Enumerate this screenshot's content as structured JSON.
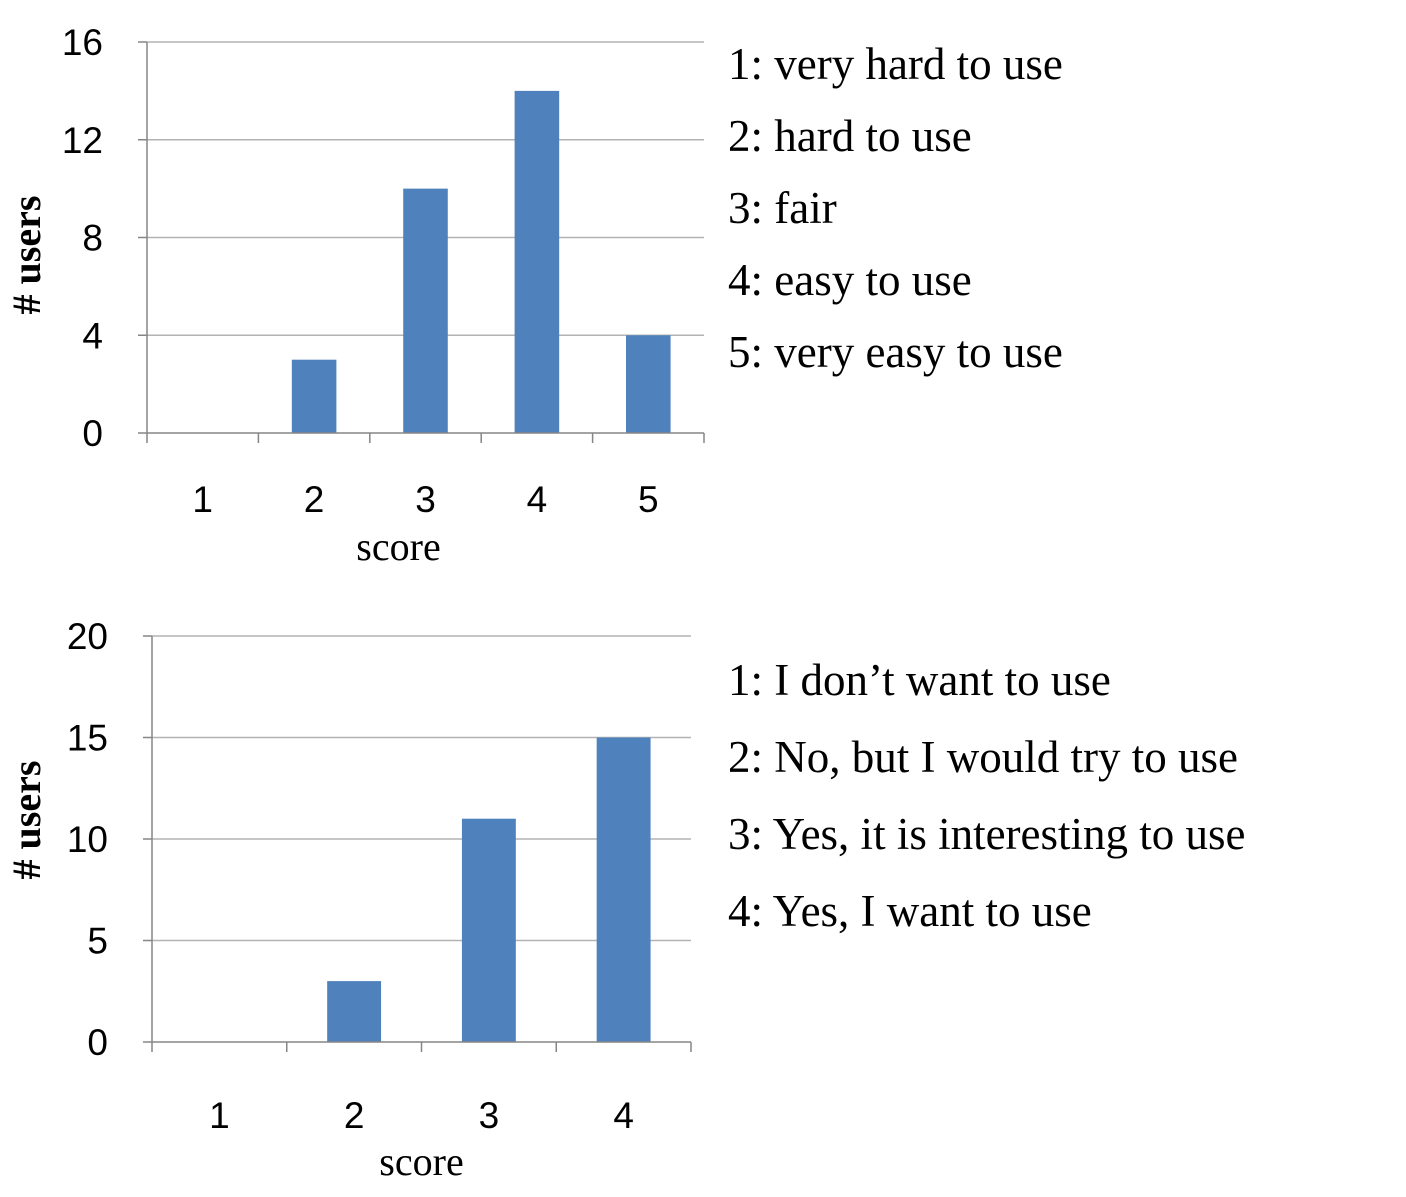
{
  "chart_data": [
    {
      "type": "bar",
      "categories": [
        "1",
        "2",
        "3",
        "4",
        "5"
      ],
      "values": [
        0,
        3,
        10,
        14,
        4
      ],
      "xlabel": "score",
      "ylabel": "# users",
      "ylim": [
        0,
        16
      ],
      "yticks": [
        0,
        4,
        8,
        12,
        16
      ],
      "grid": true,
      "bar_color": "#4f81bd",
      "legend": [
        "1: very hard to use",
        "2: hard to use",
        "3: fair",
        "4: easy to use",
        "5: very easy to use"
      ]
    },
    {
      "type": "bar",
      "categories": [
        "1",
        "2",
        "3",
        "4"
      ],
      "values": [
        0,
        3,
        11,
        15
      ],
      "xlabel": "score",
      "ylabel": "# users",
      "ylim": [
        0,
        20
      ],
      "yticks": [
        0,
        5,
        10,
        15,
        20
      ],
      "grid": true,
      "bar_color": "#4f81bd",
      "legend": [
        "1: I don’t want to use",
        "2: No, but I would try to use",
        "3: Yes, it is interesting to use",
        "4: Yes, I want to use"
      ]
    }
  ]
}
